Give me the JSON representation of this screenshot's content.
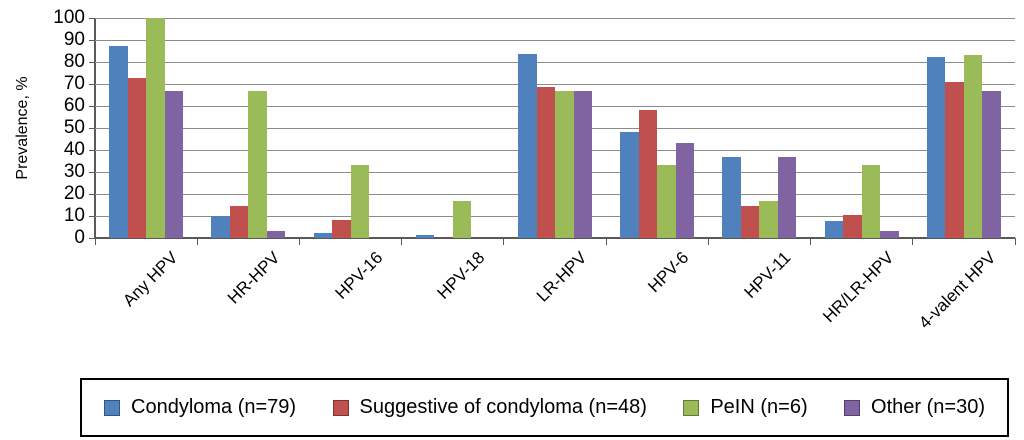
{
  "chart_data": {
    "type": "bar",
    "title": "",
    "ylabel": "Prevalence, %",
    "xlabel": "",
    "ylim": [
      0,
      100
    ],
    "yticks": [
      0,
      10,
      20,
      30,
      40,
      50,
      60,
      70,
      80,
      90,
      100
    ],
    "grid": true,
    "legend_position": "bottom",
    "categories": [
      "Any HPV",
      "HR-HPV",
      "HPV-16",
      "HPV-18",
      "LR-HPV",
      "HPV-6",
      "HPV-11",
      "HR/LR-HPV",
      "4-valent HPV"
    ],
    "series": [
      {
        "name": "Condyloma (n=79)",
        "color": "#4F81BD",
        "values": [
          87.3,
          10.1,
          2.5,
          1.3,
          83.5,
          48.1,
          36.7,
          7.6,
          82.3
        ]
      },
      {
        "name": "Suggestive of condyloma (n=48)",
        "color": "#C0504D",
        "values": [
          72.9,
          14.6,
          8.3,
          0,
          68.8,
          58.3,
          14.6,
          10.4,
          70.8
        ]
      },
      {
        "name": "PeIN (n=6)",
        "color": "#9BBB59",
        "values": [
          100,
          66.7,
          33.3,
          16.7,
          66.7,
          33.3,
          16.7,
          33.3,
          83.3
        ]
      },
      {
        "name": "Other (n=30)",
        "color": "#8064A2",
        "values": [
          66.7,
          3.3,
          0,
          0,
          66.7,
          43.3,
          36.7,
          3.3,
          66.7
        ]
      }
    ]
  },
  "colors": {
    "gridline": "#8C8C8C",
    "axis": "#595959",
    "legend_border": "#000000",
    "background": "#FFFFFF"
  }
}
